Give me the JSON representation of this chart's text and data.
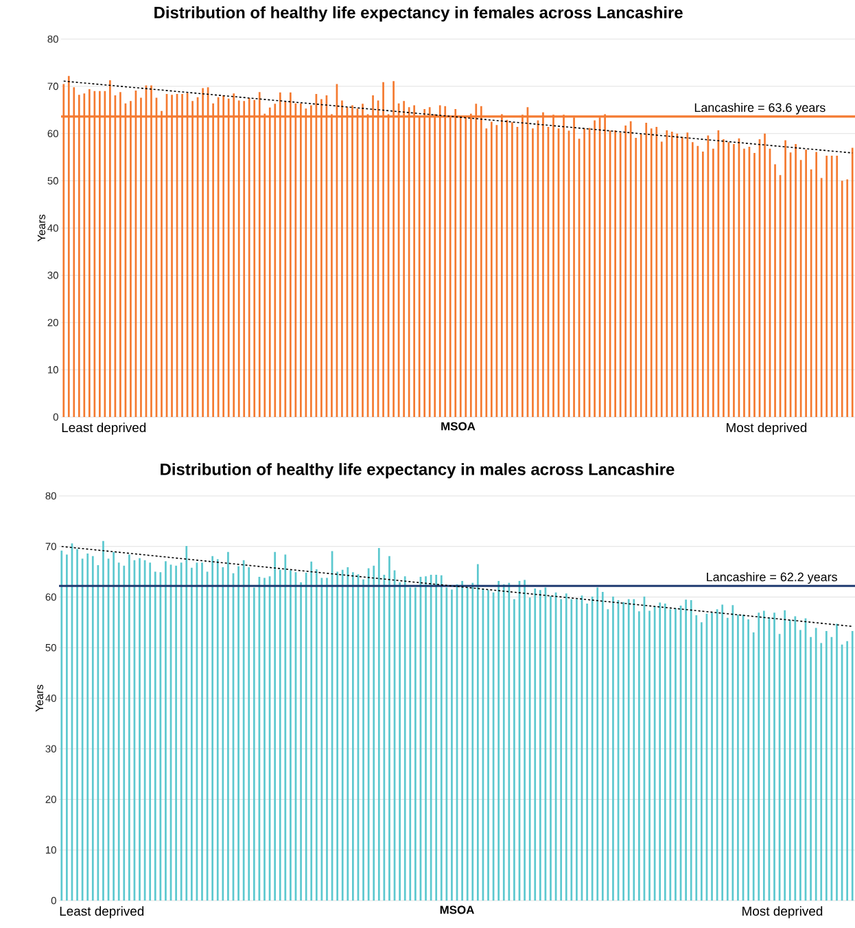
{
  "chart_data": [
    {
      "type": "bar",
      "title": "Distribution of healthy life expectancy in females across Lancashire",
      "xlabel": "MSOA",
      "ylabel": "Years",
      "categories": [
        null,
        null,
        null,
        null,
        null,
        null,
        null,
        null,
        null,
        null,
        null,
        null,
        null,
        null,
        null,
        null,
        null,
        null,
        null,
        null,
        null,
        null,
        null,
        null,
        null,
        null,
        null,
        null,
        null,
        null,
        null,
        null,
        null,
        null,
        null,
        null,
        null,
        null,
        null,
        null,
        null,
        null,
        null,
        null,
        null,
        null,
        null,
        null,
        null,
        null,
        null,
        null,
        null,
        null,
        null,
        null,
        null,
        null,
        null,
        null,
        null,
        null,
        null,
        null,
        null,
        null,
        null,
        null,
        null,
        null,
        null,
        null,
        null,
        null,
        null,
        null,
        null,
        null,
        null,
        null,
        null,
        null,
        null,
        null,
        null,
        null,
        null,
        null,
        null,
        null,
        null,
        null,
        null,
        null,
        null,
        null,
        null,
        null,
        null,
        null,
        null,
        null,
        null,
        null,
        null,
        null,
        null,
        null,
        null,
        null,
        null,
        null,
        null,
        null,
        null,
        null,
        null,
        null,
        null,
        null,
        null,
        null,
        null,
        null,
        null,
        null,
        null,
        null,
        null,
        null,
        null,
        null,
        null,
        null,
        null,
        null,
        null,
        null,
        null,
        null,
        null,
        null,
        null,
        null,
        null,
        null,
        null,
        null,
        null,
        null,
        null,
        null,
        null,
        null
      ],
      "series": [
        {
          "color": "#f47a30",
          "values": [
            70.5,
            72.2,
            69.8,
            68.2,
            68.5,
            69.4,
            69.0,
            69.0,
            69.0,
            71.3,
            68.1,
            68.8,
            66.4,
            66.9,
            69.1,
            67.6,
            70.2,
            70.2,
            67.6,
            64.8,
            68.4,
            68.2,
            68.4,
            68.4,
            68.6,
            66.9,
            67.7,
            69.6,
            69.8,
            66.4,
            67.7,
            68.1,
            67.4,
            68.5,
            67.0,
            66.9,
            67.5,
            67.1,
            68.8,
            64.2,
            65.5,
            66.3,
            68.7,
            66.8,
            68.7,
            66.4,
            66.4,
            65.3,
            66.0,
            68.4,
            67.3,
            68.1,
            64.1,
            70.5,
            67.0,
            65.6,
            66.0,
            65.3,
            66.3,
            64.1,
            68.1,
            67.0,
            70.9,
            64.1,
            71.1,
            66.4,
            66.9,
            65.6,
            66.0,
            63.6,
            65.2,
            65.6,
            64.1,
            66.0,
            65.8,
            63.4,
            65.2,
            63.4,
            63.4,
            64.2,
            66.3,
            65.8,
            61.1,
            62.5,
            61.8,
            64.1,
            62.9,
            62.4,
            61.4,
            64.0,
            65.6,
            61.1,
            62.8,
            64.5,
            61.4,
            64.0,
            61.1,
            64.0,
            60.6,
            63.4,
            58.9,
            61.1,
            61.2,
            62.8,
            63.4,
            64.1,
            60.6,
            60.7,
            60.2,
            61.7,
            62.6,
            59.1,
            59.9,
            62.3,
            61.1,
            61.4,
            58.3,
            60.7,
            60.4,
            60.0,
            59.3,
            60.2,
            58.2,
            57.4,
            56.2,
            59.6,
            56.8,
            60.7,
            58.8,
            58.2,
            57.8,
            59.0,
            56.8,
            57.2,
            55.9,
            58.8,
            60.0,
            56.8,
            53.5,
            51.2,
            58.6,
            56.0,
            57.8,
            54.4,
            56.6,
            52.4,
            56.1,
            50.6,
            55.3,
            55.3,
            55.3,
            50.0,
            50.3,
            57.0
          ]
        },
        {
          "type": "line",
          "color": "#000000",
          "line_style": "dashed",
          "marker": "none",
          "values": [
            71.1,
            null,
            null,
            null,
            null,
            null,
            null,
            null,
            null,
            null,
            null,
            null,
            null,
            null,
            null,
            null,
            null,
            null,
            null,
            null,
            null,
            null,
            null,
            null,
            null,
            null,
            null,
            null,
            null,
            null,
            null,
            null,
            null,
            null,
            null,
            null,
            null,
            null,
            null,
            null,
            null,
            null,
            null,
            null,
            null,
            null,
            null,
            null,
            null,
            null,
            null,
            null,
            null,
            null,
            null,
            null,
            null,
            null,
            null,
            null,
            null,
            null,
            null,
            null,
            null,
            null,
            null,
            null,
            null,
            null,
            null,
            null,
            null,
            null,
            null,
            null,
            null,
            null,
            null,
            null,
            null,
            null,
            null,
            null,
            null,
            null,
            null,
            null,
            null,
            null,
            null,
            null,
            null,
            null,
            null,
            null,
            null,
            null,
            null,
            null,
            null,
            null,
            null,
            null,
            null,
            null,
            null,
            null,
            null,
            null,
            null,
            null,
            null,
            null,
            null,
            null,
            null,
            null,
            null,
            null,
            null,
            null,
            null,
            null,
            null,
            null,
            null,
            null,
            null,
            null,
            null,
            null,
            null,
            null,
            null,
            null,
            null,
            null,
            null,
            null,
            null,
            null,
            null,
            null,
            null,
            null,
            null,
            null,
            null,
            null,
            null,
            null,
            null,
            55.9
          ]
        }
      ],
      "ylim": [
        0,
        80
      ],
      "yticks": [
        0,
        10,
        20,
        30,
        40,
        50,
        60,
        70,
        80
      ],
      "grid": "y",
      "tick_labels": "y",
      "ref_lines": [
        {
          "axis": "y",
          "value": 63.6,
          "label": "Lancashire = 63.6 years",
          "color": "#f47a30"
        }
      ],
      "annotations": [
        "Least deprived",
        "Most deprived"
      ]
    },
    {
      "type": "bar",
      "title": "Distribution of healthy life expectancy in males across Lancashire",
      "xlabel": "MSOA",
      "ylabel": "Years",
      "categories": [
        null,
        null,
        null,
        null,
        null,
        null,
        null,
        null,
        null,
        null,
        null,
        null,
        null,
        null,
        null,
        null,
        null,
        null,
        null,
        null,
        null,
        null,
        null,
        null,
        null,
        null,
        null,
        null,
        null,
        null,
        null,
        null,
        null,
        null,
        null,
        null,
        null,
        null,
        null,
        null,
        null,
        null,
        null,
        null,
        null,
        null,
        null,
        null,
        null,
        null,
        null,
        null,
        null,
        null,
        null,
        null,
        null,
        null,
        null,
        null,
        null,
        null,
        null,
        null,
        null,
        null,
        null,
        null,
        null,
        null,
        null,
        null,
        null,
        null,
        null,
        null,
        null,
        null,
        null,
        null,
        null,
        null,
        null,
        null,
        null,
        null,
        null,
        null,
        null,
        null,
        null,
        null,
        null,
        null,
        null,
        null,
        null,
        null,
        null,
        null,
        null,
        null,
        null,
        null,
        null,
        null,
        null,
        null,
        null,
        null,
        null,
        null,
        null,
        null,
        null,
        null,
        null,
        null,
        null,
        null,
        null,
        null,
        null,
        null,
        null,
        null,
        null,
        null,
        null,
        null,
        null,
        null,
        null,
        null,
        null,
        null,
        null,
        null,
        null,
        null,
        null,
        null,
        null,
        null,
        null,
        null,
        null,
        null,
        null,
        null,
        null,
        null,
        null
      ],
      "series": [
        {
          "color": "#5cc8cf",
          "values": [
            69.2,
            68.4,
            70.6,
            69.5,
            67.6,
            68.6,
            68.1,
            66.3,
            71.1,
            67.6,
            68.9,
            66.8,
            66.2,
            68.4,
            67.3,
            67.7,
            67.3,
            66.8,
            65.0,
            64.9,
            67.1,
            66.4,
            66.2,
            66.8,
            70.1,
            65.8,
            66.8,
            66.8,
            65.0,
            68.1,
            67.5,
            65.9,
            68.9,
            64.7,
            66.1,
            67.3,
            65.9,
            61.9,
            64.0,
            63.8,
            64.1,
            68.9,
            65.4,
            68.4,
            65.3,
            64.9,
            62.9,
            64.8,
            67.0,
            65.5,
            63.8,
            63.8,
            69.1,
            65.0,
            65.4,
            65.9,
            64.9,
            64.5,
            63.5,
            65.7,
            66.2,
            69.7,
            64.4,
            68.1,
            65.3,
            62.9,
            64.1,
            61.9,
            61.9,
            64.0,
            64.1,
            64.4,
            64.4,
            64.3,
            61.9,
            61.5,
            62.5,
            63.2,
            61.9,
            62.8,
            66.5,
            61.7,
            61.4,
            60.9,
            63.2,
            62.5,
            62.8,
            59.6,
            63.2,
            63.4,
            59.9,
            61.7,
            61.4,
            61.9,
            60.2,
            60.9,
            59.6,
            60.7,
            59.6,
            59.6,
            60.3,
            58.7,
            60.1,
            61.9,
            61.0,
            57.6,
            60.1,
            59.4,
            59.0,
            59.6,
            59.6,
            57.2,
            60.1,
            57.3,
            58.2,
            58.9,
            58.7,
            57.6,
            57.8,
            58.3,
            59.5,
            59.4,
            56.4,
            55.0,
            56.7,
            56.9,
            57.6,
            58.5,
            55.9,
            58.4,
            56.5,
            56.5,
            55.6,
            53.0,
            56.9,
            57.3,
            56.0,
            56.9,
            52.7,
            57.4,
            55.5,
            56.2,
            53.5,
            55.8,
            52.1,
            53.9,
            50.9,
            53.3,
            52.1,
            54.7,
            50.6,
            51.3,
            53.3
          ]
        },
        {
          "type": "line",
          "color": "#000000",
          "line_style": "dashed",
          "marker": "none",
          "values": [
            70.0,
            null,
            null,
            null,
            null,
            null,
            null,
            null,
            null,
            null,
            null,
            null,
            null,
            null,
            null,
            null,
            null,
            null,
            null,
            null,
            null,
            null,
            null,
            null,
            null,
            null,
            null,
            null,
            null,
            null,
            null,
            null,
            null,
            null,
            null,
            null,
            null,
            null,
            null,
            null,
            null,
            null,
            null,
            null,
            null,
            null,
            null,
            null,
            null,
            null,
            null,
            null,
            null,
            null,
            null,
            null,
            null,
            null,
            null,
            null,
            null,
            null,
            null,
            null,
            null,
            null,
            null,
            null,
            null,
            null,
            null,
            null,
            null,
            null,
            null,
            null,
            null,
            null,
            null,
            null,
            null,
            null,
            null,
            null,
            null,
            null,
            null,
            null,
            null,
            null,
            null,
            null,
            null,
            null,
            null,
            null,
            null,
            null,
            null,
            null,
            null,
            null,
            null,
            null,
            null,
            null,
            null,
            null,
            null,
            null,
            null,
            null,
            null,
            null,
            null,
            null,
            null,
            null,
            null,
            null,
            null,
            null,
            null,
            null,
            null,
            null,
            null,
            null,
            null,
            null,
            null,
            null,
            null,
            null,
            null,
            null,
            null,
            null,
            null,
            null,
            null,
            null,
            null,
            null,
            null,
            null,
            null,
            null,
            null,
            null,
            null,
            null,
            54.2
          ]
        }
      ],
      "ylim": [
        0,
        80
      ],
      "yticks": [
        0,
        10,
        20,
        30,
        40,
        50,
        60,
        70,
        80
      ],
      "grid": "y",
      "tick_labels": "y",
      "ref_lines": [
        {
          "axis": "y",
          "value": 62.2,
          "label": "Lancashire = 62.2 years",
          "color": "#1f3a70"
        }
      ],
      "annotations": [
        "Least deprived",
        "Most deprived"
      ]
    }
  ]
}
